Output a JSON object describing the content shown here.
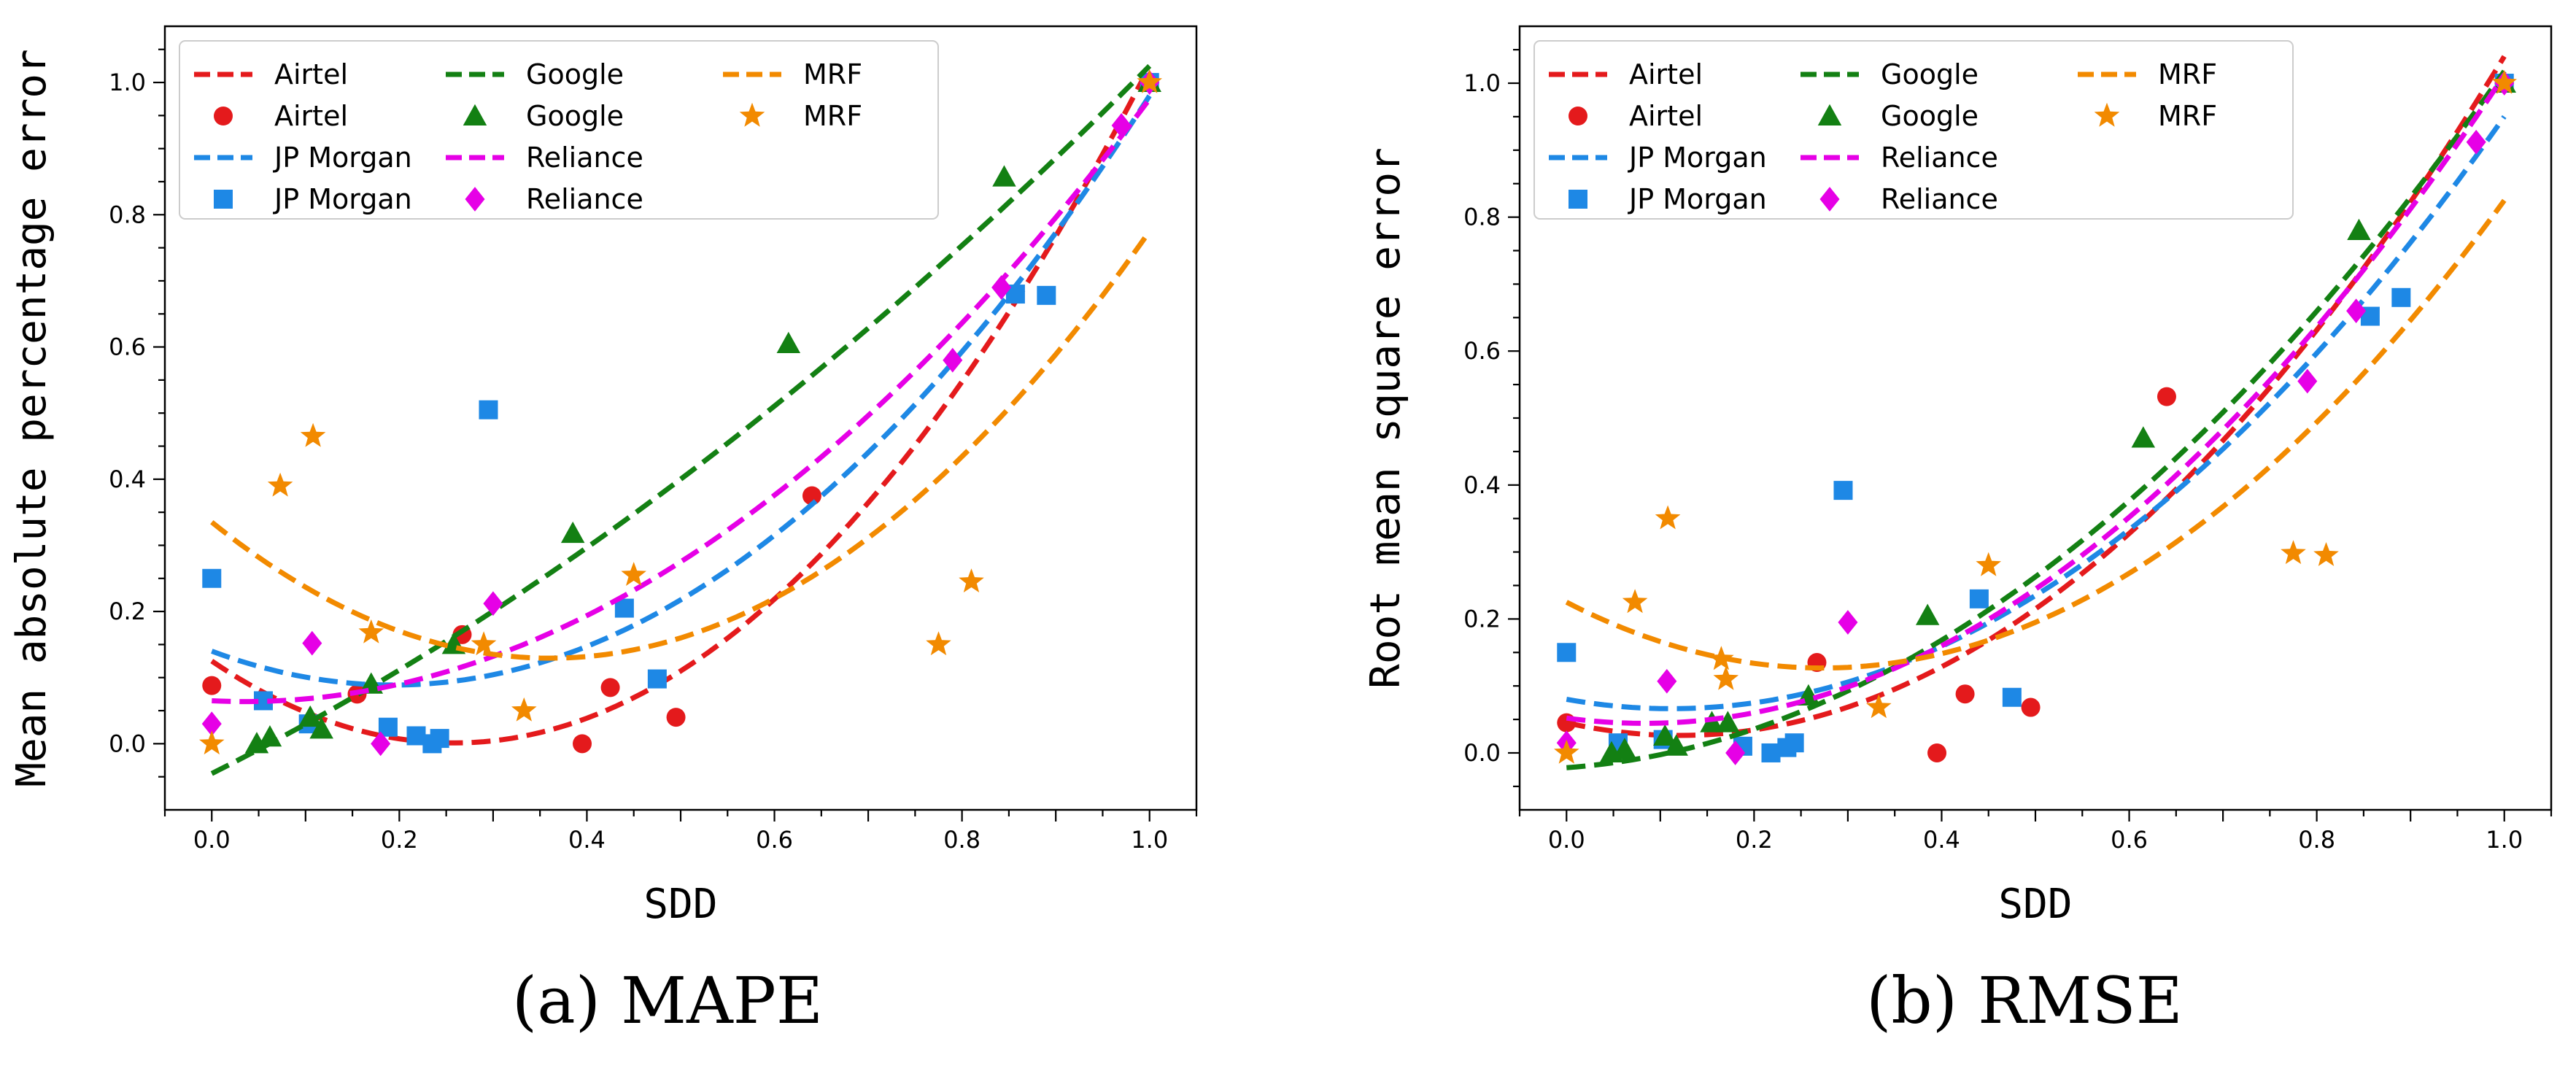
{
  "chart_data": [
    {
      "type": "scatter",
      "caption": "(a) MAPE",
      "xlabel": "SDD",
      "ylabel": "Mean absolute percentage error",
      "xlim": [
        -0.05,
        1.05
      ],
      "ylim": [
        -0.1,
        1.085
      ],
      "xticks": [
        0.0,
        0.2,
        0.4,
        0.6,
        0.8,
        1.0
      ],
      "xtick_labels": [
        "0.0",
        "0.2",
        "0.4",
        "0.6",
        "0.8",
        "1.0"
      ],
      "yticks": [
        0.0,
        0.2,
        0.4,
        0.6,
        0.8,
        1.0
      ],
      "ytick_labels": [
        "0.0",
        "0.2",
        "0.4",
        "0.6",
        "0.8",
        "1.0"
      ],
      "grid": false,
      "legend_position": "top-left",
      "series": [
        {
          "name": "Airtel",
          "color": "#e41a1c",
          "marker": "circle",
          "points": [
            [
              0.0,
              0.088
            ],
            [
              0.155,
              0.075
            ],
            [
              0.267,
              0.165
            ],
            [
              0.395,
              0.0
            ],
            [
              0.425,
              0.085
            ],
            [
              0.495,
              0.04
            ],
            [
              0.64,
              0.375
            ],
            [
              1.0,
              1.0
            ]
          ],
          "fit": [
            0.125,
            -0.96,
            1.86
          ]
        },
        {
          "name": "JP Morgan",
          "color": "#1e88e5",
          "marker": "square",
          "points": [
            [
              0.0,
              0.25
            ],
            [
              0.055,
              0.065
            ],
            [
              0.103,
              0.03
            ],
            [
              0.188,
              0.025
            ],
            [
              0.218,
              0.012
            ],
            [
              0.235,
              0.0
            ],
            [
              0.243,
              0.008
            ],
            [
              0.295,
              0.505
            ],
            [
              0.44,
              0.205
            ],
            [
              0.475,
              0.098
            ],
            [
              0.857,
              0.68
            ],
            [
              0.89,
              0.678
            ],
            [
              1.0,
              1.0
            ]
          ],
          "fit": [
            0.14,
            -0.53,
            1.37
          ]
        },
        {
          "name": "Google",
          "color": "#138013",
          "marker": "triangle",
          "points": [
            [
              0.048,
              0.0
            ],
            [
              0.062,
              0.01
            ],
            [
              0.105,
              0.04
            ],
            [
              0.117,
              0.022
            ],
            [
              0.17,
              0.09
            ],
            [
              0.258,
              0.15
            ],
            [
              0.385,
              0.318
            ],
            [
              0.615,
              0.605
            ],
            [
              0.845,
              0.857
            ],
            [
              1.0,
              1.0
            ]
          ],
          "fit": [
            -0.045,
            0.71,
            0.36
          ]
        },
        {
          "name": "Reliance",
          "color": "#e600e6",
          "marker": "diamond",
          "points": [
            [
              0.0,
              0.03
            ],
            [
              0.107,
              0.152
            ],
            [
              0.18,
              0.0
            ],
            [
              0.3,
              0.212
            ],
            [
              0.79,
              0.58
            ],
            [
              0.842,
              0.69
            ],
            [
              0.97,
              0.935
            ],
            [
              1.0,
              1.0
            ]
          ],
          "fit": [
            0.065,
            -0.07,
            0.98
          ]
        },
        {
          "name": "MRF",
          "color": "#f28a00",
          "marker": "star",
          "points": [
            [
              0.0,
              0.0
            ],
            [
              0.073,
              0.39
            ],
            [
              0.108,
              0.465
            ],
            [
              0.17,
              0.168
            ],
            [
              0.29,
              0.15
            ],
            [
              0.333,
              0.05
            ],
            [
              0.45,
              0.255
            ],
            [
              0.775,
              0.15
            ],
            [
              0.81,
              0.245
            ],
            [
              1.0,
              1.0
            ]
          ],
          "fit": [
            0.335,
            -1.14,
            1.58
          ]
        }
      ]
    },
    {
      "type": "scatter",
      "caption": "(b) RMSE",
      "xlabel": "SDD",
      "ylabel": "Root mean square error",
      "xlim": [
        -0.05,
        1.05
      ],
      "ylim": [
        -0.085,
        1.085
      ],
      "xticks": [
        0.0,
        0.2,
        0.4,
        0.6,
        0.8,
        1.0
      ],
      "xtick_labels": [
        "0.0",
        "0.2",
        "0.4",
        "0.6",
        "0.8",
        "1.0"
      ],
      "yticks": [
        0.0,
        0.2,
        0.4,
        0.6,
        0.8,
        1.0
      ],
      "ytick_labels": [
        "0.0",
        "0.2",
        "0.4",
        "0.6",
        "0.8",
        "1.0"
      ],
      "grid": false,
      "legend_position": "top-left",
      "series": [
        {
          "name": "Airtel",
          "color": "#e41a1c",
          "marker": "circle",
          "points": [
            [
              0.0,
              0.045
            ],
            [
              0.267,
              0.135
            ],
            [
              0.395,
              0.0
            ],
            [
              0.425,
              0.088
            ],
            [
              0.495,
              0.068
            ],
            [
              0.64,
              0.532
            ],
            [
              1.0,
              1.0
            ]
          ],
          "fit": [
            0.045,
            -0.315,
            1.31
          ]
        },
        {
          "name": "JP Morgan",
          "color": "#1e88e5",
          "marker": "square",
          "points": [
            [
              0.0,
              0.15
            ],
            [
              0.055,
              0.015
            ],
            [
              0.103,
              0.02
            ],
            [
              0.188,
              0.01
            ],
            [
              0.218,
              0.0
            ],
            [
              0.235,
              0.008
            ],
            [
              0.243,
              0.015
            ],
            [
              0.295,
              0.392
            ],
            [
              0.44,
              0.23
            ],
            [
              0.475,
              0.083
            ],
            [
              0.857,
              0.652
            ],
            [
              0.89,
              0.68
            ],
            [
              1.0,
              1.0
            ]
          ],
          "fit": [
            0.08,
            -0.25,
            1.12
          ]
        },
        {
          "name": "Google",
          "color": "#138013",
          "marker": "triangle",
          "points": [
            [
              0.048,
              0.0
            ],
            [
              0.062,
              0.005
            ],
            [
              0.105,
              0.025
            ],
            [
              0.117,
              0.01
            ],
            [
              0.155,
              0.045
            ],
            [
              0.172,
              0.045
            ],
            [
              0.258,
              0.085
            ],
            [
              0.385,
              0.205
            ],
            [
              0.615,
              0.47
            ],
            [
              0.845,
              0.78
            ],
            [
              1.0,
              1.0
            ]
          ],
          "fit": [
            -0.022,
            0.1,
            0.94
          ]
        },
        {
          "name": "Reliance",
          "color": "#e600e6",
          "marker": "diamond",
          "points": [
            [
              0.0,
              0.015
            ],
            [
              0.107,
              0.107
            ],
            [
              0.18,
              0.0
            ],
            [
              0.3,
              0.195
            ],
            [
              0.79,
              0.555
            ],
            [
              0.842,
              0.66
            ],
            [
              0.97,
              0.912
            ],
            [
              1.0,
              1.0
            ]
          ],
          "fit": [
            0.052,
            -0.19,
            1.15
          ]
        },
        {
          "name": "MRF",
          "color": "#f28a00",
          "marker": "star",
          "points": [
            [
              0.0,
              0.0
            ],
            [
              0.073,
              0.225
            ],
            [
              0.108,
              0.35
            ],
            [
              0.165,
              0.14
            ],
            [
              0.17,
              0.11
            ],
            [
              0.333,
              0.068
            ],
            [
              0.45,
              0.28
            ],
            [
              0.775,
              0.298
            ],
            [
              0.81,
              0.295
            ],
            [
              1.0,
              1.0
            ]
          ],
          "fit": [
            0.225,
            -0.72,
            1.32
          ]
        }
      ]
    }
  ]
}
